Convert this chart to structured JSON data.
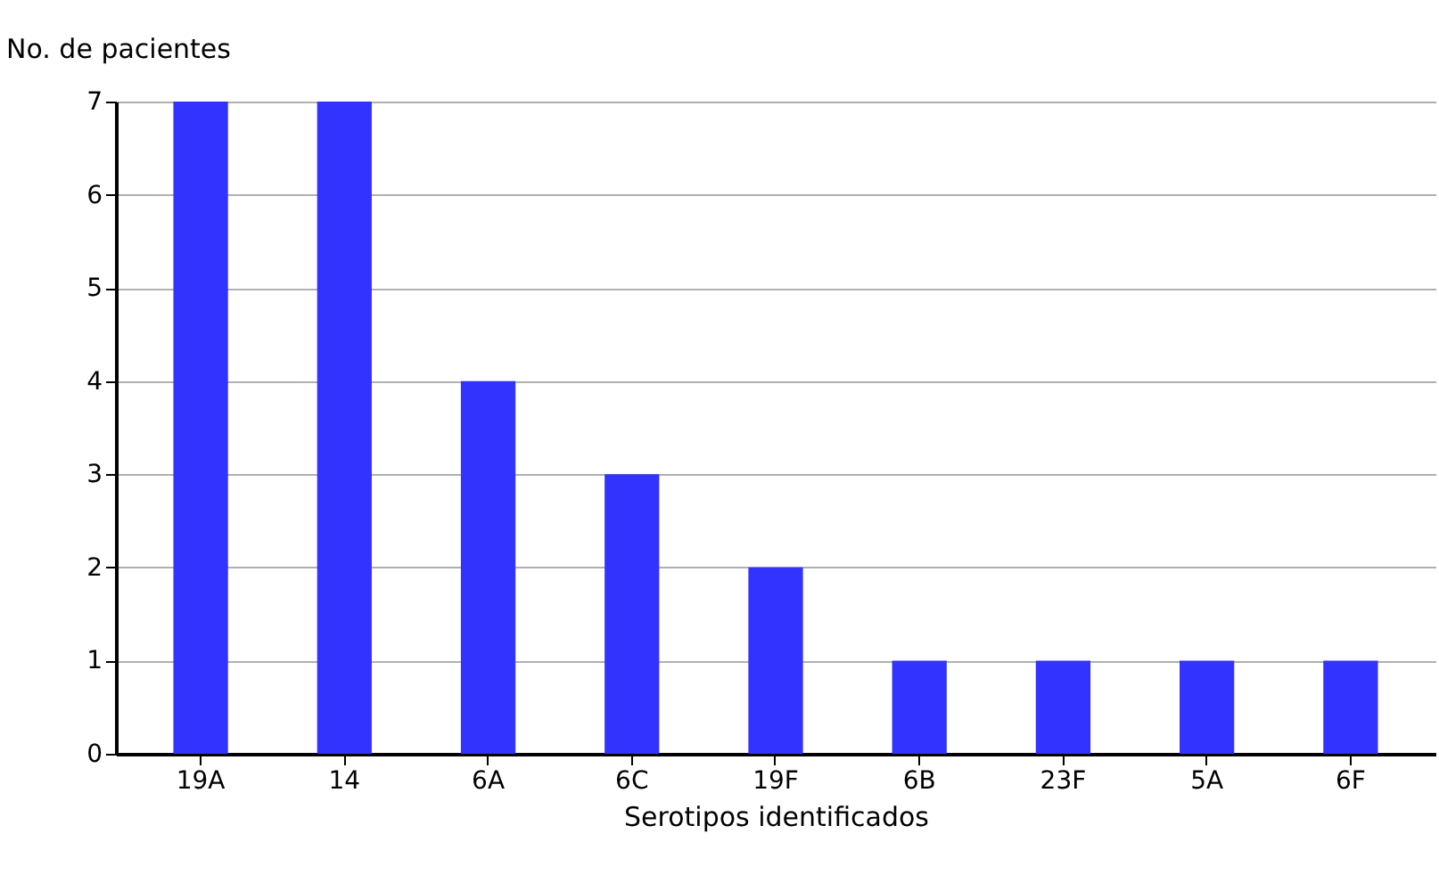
{
  "chart_data": {
    "type": "bar",
    "xlabel": "Serotipos identificados",
    "ylabel": "No. de pacientes",
    "categories": [
      "19A",
      "14",
      "6A",
      "6C",
      "19F",
      "6B",
      "23F",
      "5A",
      "6F"
    ],
    "values": [
      7,
      7,
      4,
      3,
      2,
      1,
      1,
      1,
      1
    ],
    "color": "#3333ff",
    "ylim": [
      0,
      7
    ],
    "yticks": [
      0,
      1,
      2,
      3,
      4,
      5,
      6,
      7
    ],
    "grid": "y"
  }
}
